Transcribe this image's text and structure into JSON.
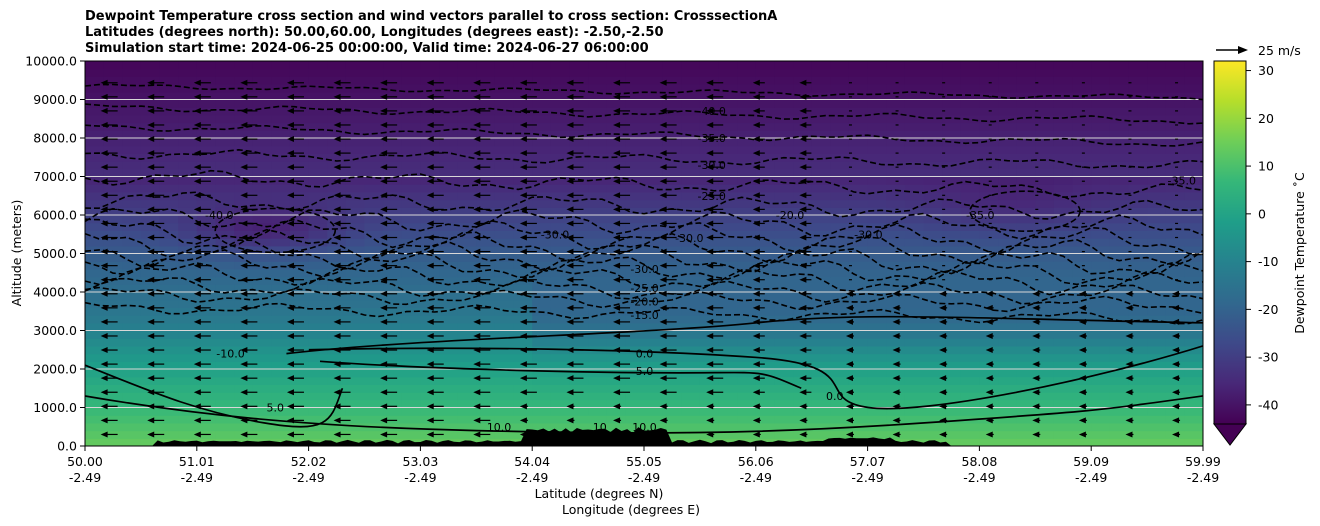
{
  "chart_data": {
    "type": "heatmap",
    "title_lines": [
      "Dewpoint Temperature cross section and wind vectors parallel to cross section: CrosssectionA",
      "Latitudes (degrees north): 50.00,60.00, Longitudes (degrees east): -2.50,-2.50",
      "Simulation start time: 2024-06-25 00:00:00, Valid time: 2024-06-27 06:00:00"
    ],
    "ylabel": "Altitude (meters)",
    "xlabel": "Latitude (degrees N)",
    "xlabel2": "Longitude (degrees E)",
    "ylim": [
      0,
      10000
    ],
    "xlim": [
      50.0,
      59.99
    ],
    "y_ticks": [
      0,
      1000,
      2000,
      3000,
      4000,
      5000,
      6000,
      7000,
      8000,
      9000,
      10000
    ],
    "y_tick_labels": [
      "0.0",
      "1000.0",
      "2000.0",
      "3000.0",
      "4000.0",
      "5000.0",
      "6000.0",
      "7000.0",
      "8000.0",
      "9000.0",
      "10000.0"
    ],
    "x_ticks": [
      {
        "lat": "50.00",
        "lon": "-2.49"
      },
      {
        "lat": "51.01",
        "lon": "-2.49"
      },
      {
        "lat": "52.02",
        "lon": "-2.49"
      },
      {
        "lat": "53.03",
        "lon": "-2.49"
      },
      {
        "lat": "54.04",
        "lon": "-2.49"
      },
      {
        "lat": "55.05",
        "lon": "-2.49"
      },
      {
        "lat": "56.06",
        "lon": "-2.49"
      },
      {
        "lat": "57.07",
        "lon": "-2.49"
      },
      {
        "lat": "58.08",
        "lon": "-2.49"
      },
      {
        "lat": "59.09",
        "lon": "-2.49"
      },
      {
        "lat": "59.99",
        "lon": "-2.49"
      }
    ],
    "grid": "horizontal",
    "colorbar": {
      "label": "Dewpoint Temperature $^\\circ$C",
      "label_display": "Dewpoint Temperature ˚C",
      "range": [
        -44,
        32
      ],
      "ticks": [
        -40,
        -30,
        -20,
        -10,
        0,
        10,
        20,
        30
      ],
      "colormap": [
        "#440154",
        "#482878",
        "#3e4989",
        "#31688e",
        "#26828e",
        "#1f9e89",
        "#35b779",
        "#6ece58",
        "#b5de2b",
        "#fde725"
      ],
      "extend": "min"
    },
    "quiver_key": {
      "label": "25 m/s",
      "speed": 25
    },
    "contour_labels": [
      {
        "text": "-40.0",
        "lat": 55.6,
        "alt": 8700
      },
      {
        "text": "-35.0",
        "lat": 55.6,
        "alt": 8000
      },
      {
        "text": "-30.0",
        "lat": 55.6,
        "alt": 7300
      },
      {
        "text": "-40.0",
        "lat": 51.2,
        "alt": 6000
      },
      {
        "text": "-25.0",
        "lat": 55.6,
        "alt": 6500
      },
      {
        "text": "-20.0",
        "lat": 56.3,
        "alt": 6000
      },
      {
        "text": "-30.0",
        "lat": 54.2,
        "alt": 5500
      },
      {
        "text": "-30.0",
        "lat": 55.4,
        "alt": 5400
      },
      {
        "text": "-30.0",
        "lat": 57.0,
        "alt": 5500
      },
      {
        "text": "-35.0",
        "lat": 58.0,
        "alt": 6000
      },
      {
        "text": "-35.0",
        "lat": 59.8,
        "alt": 6900
      },
      {
        "text": "-30.0",
        "lat": 55.0,
        "alt": 4600
      },
      {
        "text": "-25.0",
        "lat": 55.0,
        "alt": 4100
      },
      {
        "text": "-20.0",
        "lat": 55.0,
        "alt": 3750
      },
      {
        "text": "-15.0",
        "lat": 55.0,
        "alt": 3400
      },
      {
        "text": "-10.0",
        "lat": 51.3,
        "alt": 2400
      },
      {
        "text": "0.0",
        "lat": 55.0,
        "alt": 2400
      },
      {
        "text": "5.0",
        "lat": 55.0,
        "alt": 1950
      },
      {
        "text": "0.0",
        "lat": 56.7,
        "alt": 1300
      },
      {
        "text": "5.0",
        "lat": 51.7,
        "alt": 1000
      },
      {
        "text": "10.0",
        "lat": 55.0,
        "alt": 500
      },
      {
        "text": "10.0",
        "lat": 53.7,
        "alt": 500
      },
      {
        "text": "10",
        "lat": 54.6,
        "alt": 500
      }
    ]
  }
}
